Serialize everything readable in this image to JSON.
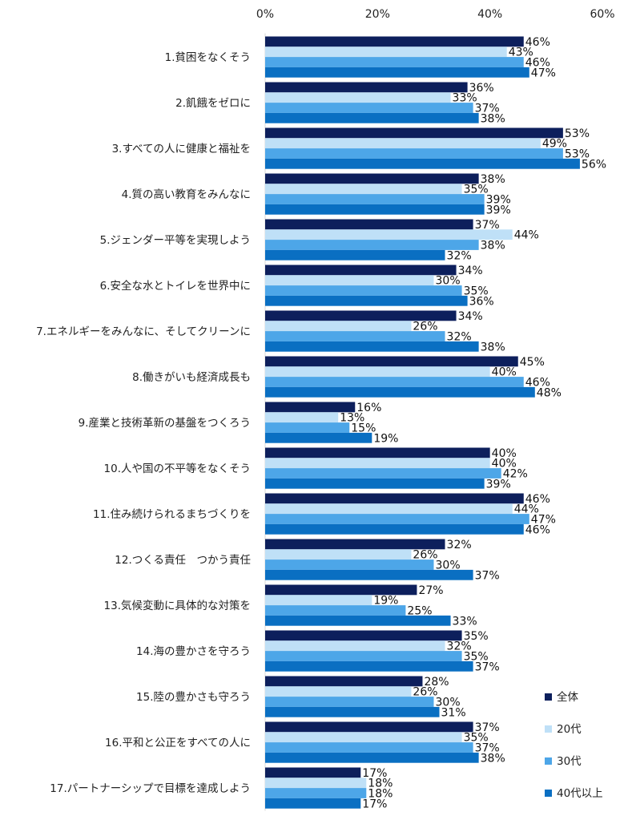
{
  "chart_data": {
    "type": "bar",
    "orientation": "horizontal",
    "title": "",
    "xlabel": "",
    "ylabel": "",
    "xlim": [
      0,
      60
    ],
    "x_ticks": [
      "0%",
      "20%",
      "40%",
      "60%"
    ],
    "tick_values": [
      0,
      20,
      40,
      60
    ],
    "grid": false,
    "legend_position": "bottom-right",
    "value_suffix": "%",
    "categories": [
      "1.貧困をなくそう",
      "2.飢餓をゼロに",
      "3.すべての人に健康と福祉を",
      "4.質の高い教育をみんなに",
      "5.ジェンダー平等を実現しよう",
      "6.安全な水とトイレを世界中に",
      "7.エネルギーをみんなに、そしてクリーンに",
      "8.働きがいも経済成長も",
      "9.産業と技術革新の基盤をつくろう",
      "10.人や国の不平等をなくそう",
      "11.住み続けられるまちづくりを",
      "12.つくる責任　つかう責任",
      "13.気候変動に具体的な対策を",
      "14.海の豊かさを守ろう",
      "15.陸の豊かさも守ろう",
      "16.平和と公正をすべての人に",
      "17.パートナーシップで目標を達成しよう"
    ],
    "series": [
      {
        "name": "全体",
        "color": "#0d1f5c",
        "values": [
          46,
          36,
          53,
          38,
          37,
          34,
          34,
          45,
          16,
          40,
          46,
          32,
          27,
          35,
          28,
          37,
          17
        ]
      },
      {
        "name": "20代",
        "color": "#bfe0f7",
        "values": [
          43,
          33,
          49,
          35,
          44,
          30,
          26,
          40,
          13,
          40,
          44,
          26,
          19,
          32,
          26,
          35,
          18
        ]
      },
      {
        "name": "30代",
        "color": "#4da6e8",
        "values": [
          46,
          37,
          53,
          39,
          38,
          35,
          32,
          46,
          15,
          42,
          47,
          30,
          25,
          35,
          30,
          37,
          18
        ]
      },
      {
        "name": "40代以上",
        "color": "#0a6fc2",
        "values": [
          47,
          38,
          56,
          39,
          32,
          36,
          38,
          48,
          19,
          39,
          46,
          37,
          33,
          37,
          31,
          38,
          17
        ]
      }
    ]
  }
}
